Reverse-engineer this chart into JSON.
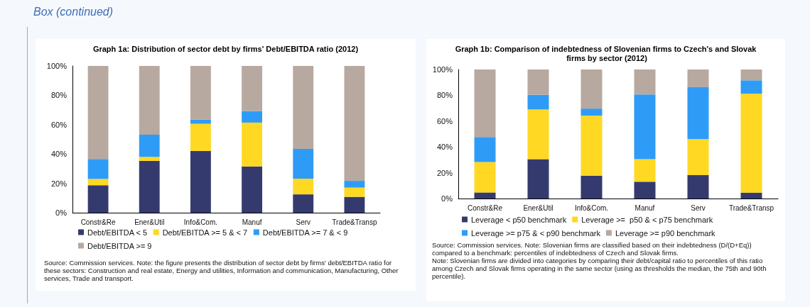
{
  "chart_data": [
    {
      "type": "bar",
      "stacked": true,
      "title": "Graph 1a: Distribution of sector debt by firms' Debt/EBITDA ratio (2012)",
      "categories": [
        "Constr&Re",
        "Ener&Util",
        "Info&Com.",
        "Manuf",
        "Serv",
        "Trade&Transp"
      ],
      "series": [
        {
          "name": "Debt/EBITDA < 5",
          "color": "#353a6e",
          "values": [
            18.7,
            35.3,
            42.0,
            31.5,
            12.5,
            10.8
          ]
        },
        {
          "name": "Debt/EBITDA >= 5 & < 7",
          "color": "#ffd823",
          "values": [
            4.3,
            2.8,
            18.6,
            29.9,
            10.7,
            6.3
          ]
        },
        {
          "name": "Debt/EBITDA >= 7 & < 9",
          "color": "#2e9cf6",
          "values": [
            13.6,
            15.1,
            2.8,
            7.9,
            20.3,
            4.6
          ]
        },
        {
          "name": "Debt/EBITDA >= 9",
          "color": "#b7a9a0",
          "values": [
            63.4,
            46.8,
            36.6,
            30.7,
            56.5,
            78.3
          ]
        }
      ],
      "ylim": [
        0,
        100
      ],
      "yticks": [
        {
          "value": 0,
          "label": "0%"
        },
        {
          "value": 20,
          "label": "20%"
        },
        {
          "value": 40,
          "label": "40%"
        },
        {
          "value": 60,
          "label": "60%"
        },
        {
          "value": 80,
          "label": "80%"
        },
        {
          "value": 100,
          "label": "100%"
        }
      ],
      "grid": false,
      "legend": "bottom",
      "annotations": [
        "Box (continued)",
        "Source: Commission services. Note: the figure presents the distribution of sector debt by firms' debt/EBITDA ratio for these sectors: Construction and real estate, Energy and utilities, Information and communication, Manufacturing, Other services, Trade and transport."
      ]
    },
    {
      "type": "bar",
      "stacked": true,
      "title": "Graph 1b: Comparison of indebtedness of Slovenian firms to Czech's and Slovak firms by sector (2012)",
      "categories": [
        "Constr&Re",
        "Ener&Util",
        "Info&Com.",
        "Manuf",
        "Serv",
        "Trade&Transp"
      ],
      "series": [
        {
          "name": "Leverage < p50 benchmark",
          "color": "#353a6e",
          "values": [
            4.7,
            30.5,
            17.7,
            13.0,
            18.2,
            4.6
          ]
        },
        {
          "name": "Leverage >=  p50 & < p75 benchmark",
          "color": "#ffd823",
          "values": [
            23.6,
            38.5,
            46.5,
            17.5,
            27.8,
            76.6
          ]
        },
        {
          "name": "Leverage >= p75 & < p90 benchmark",
          "color": "#2e9cf6",
          "values": [
            19.3,
            11.3,
            5.5,
            50.2,
            40.3,
            10.4
          ]
        },
        {
          "name": "Leverage >= p90 benchmark",
          "color": "#b7a9a0",
          "values": [
            52.4,
            19.7,
            30.3,
            19.3,
            13.7,
            8.4
          ]
        }
      ],
      "ylim": [
        0,
        100
      ],
      "yticks": [
        {
          "value": 0,
          "label": "0%"
        },
        {
          "value": 20,
          "label": "20%"
        },
        {
          "value": 40,
          "label": "40%"
        },
        {
          "value": 60,
          "label": "60%"
        },
        {
          "value": 80,
          "label": "80%"
        },
        {
          "value": 100,
          "label": "100%"
        }
      ],
      "grid": false,
      "legend": "bottom",
      "annotations": [
        "Source: Commission services. Note: Slovenian firms are classified based on their indebtedness (D/(D+Eq)) compared to a benchmark: percentiles of indebtedness of Czech and Slovak firms.",
        "Note: Slovenian firms are divided into categories by comparing their debt/capital ratio to percentiles of this ratio among Czech and Slovak firms operating in the same sector (using as thresholds the median, the 75th and 90th percentile)."
      ]
    }
  ]
}
